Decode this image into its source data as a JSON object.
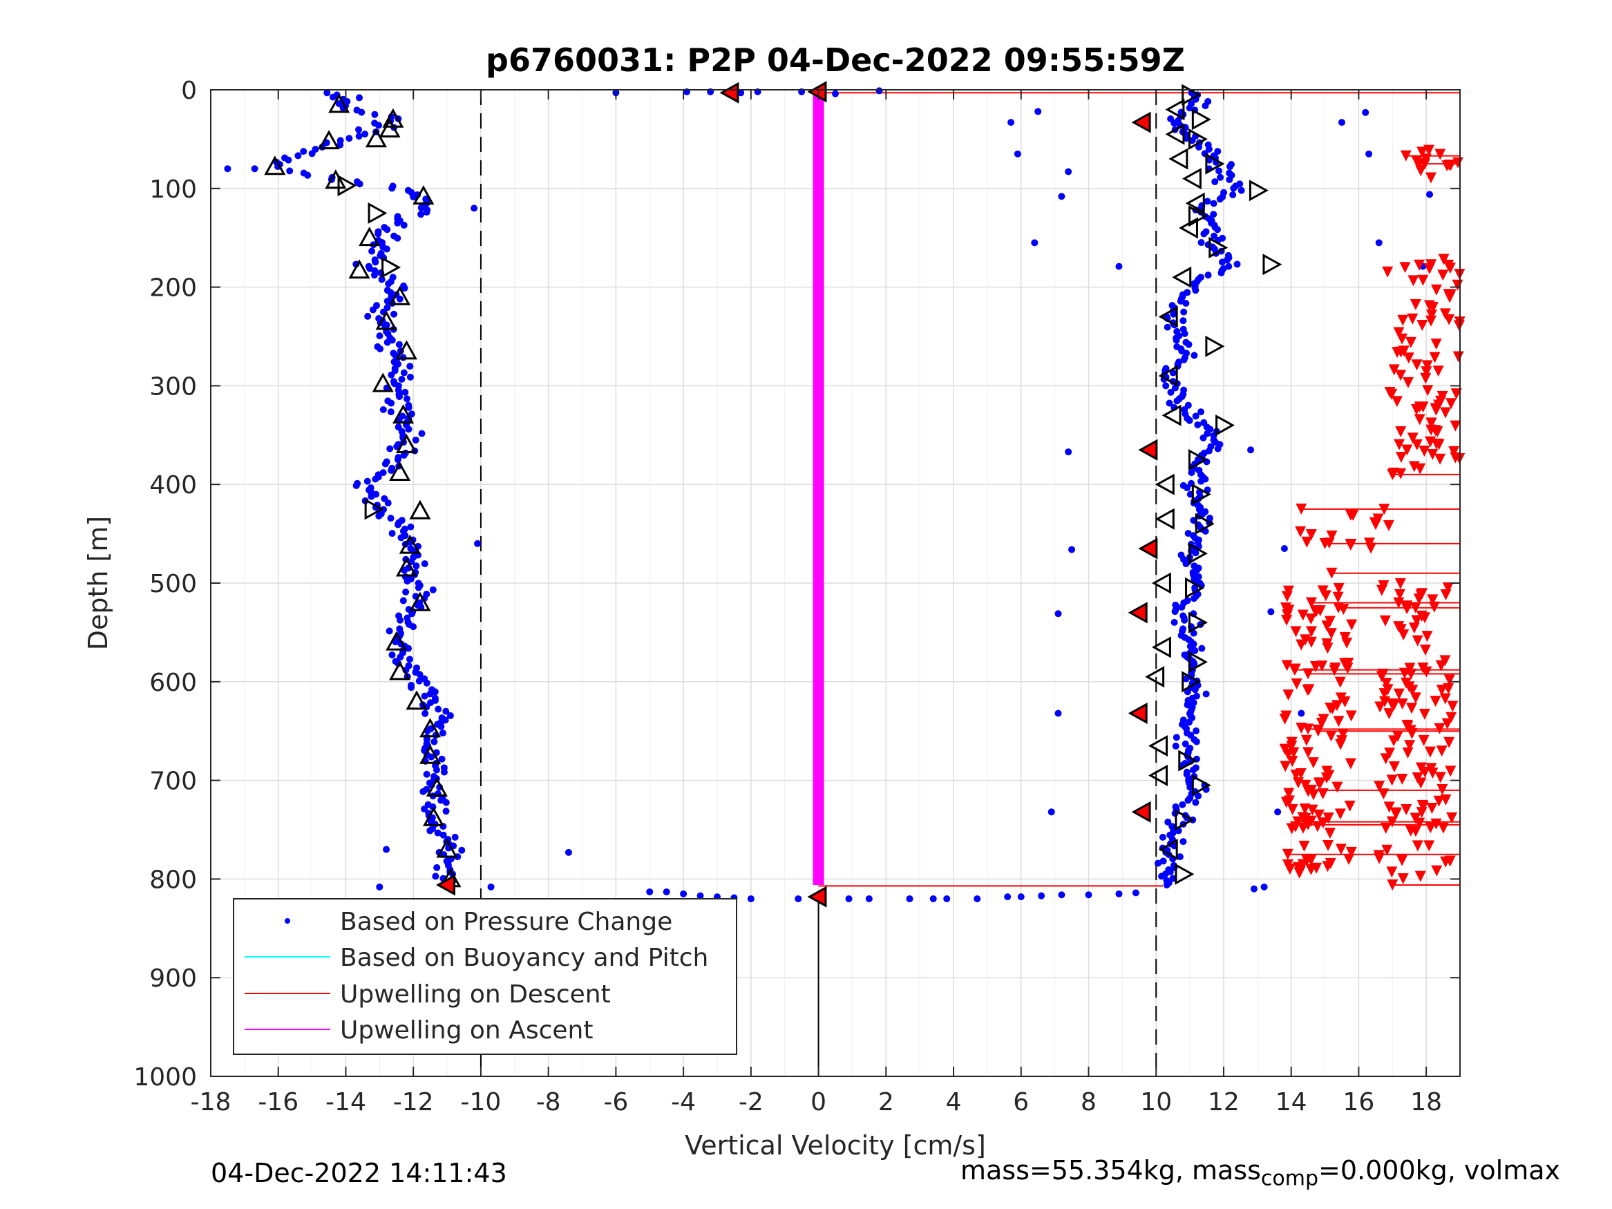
{
  "chart_data": {
    "type": "scatter",
    "title": "p6760031: P2P 04-Dec-2022 09:55:59Z",
    "xlabel": "Vertical Velocity [cm/s]",
    "ylabel": "Depth [m]",
    "xlim": [
      -18,
      19
    ],
    "ylim": [
      0,
      1000
    ],
    "y_reversed": true,
    "grid": true,
    "xticks": [
      "-18",
      "-16",
      "-14",
      "-12",
      "-10",
      "-8",
      "-6",
      "-4",
      "-2",
      "0",
      "2",
      "4",
      "6",
      "8",
      "10",
      "12",
      "14",
      "16",
      "18"
    ],
    "yticks": [
      "0",
      "100",
      "200",
      "300",
      "400",
      "500",
      "600",
      "700",
      "800",
      "900",
      "1000"
    ],
    "legend_position": "bottom-left",
    "legend": [
      {
        "label": "Based on Pressure Change",
        "color": "#0000ff",
        "marker": "dot"
      },
      {
        "label": "Based on Buoyancy and Pitch",
        "color": "#00ffff",
        "marker": "line"
      },
      {
        "label": "Upwelling on Descent",
        "color": "#ff0000",
        "marker": "line"
      },
      {
        "label": "Upwelling on Ascent",
        "color": "#ff00ff",
        "marker": "line"
      }
    ],
    "reference_lines": [
      {
        "x": -10,
        "style": "dashed"
      },
      {
        "x": 10,
        "style": "dashed"
      },
      {
        "x": 0,
        "style": "solid",
        "ymin": 820,
        "ymax": 1000
      }
    ],
    "ascent_profile_approx": [
      [
        0,
        -14.5
      ],
      [
        15,
        -14.2
      ],
      [
        30,
        -12.6
      ],
      [
        45,
        -13.4
      ],
      [
        55,
        -14.6
      ],
      [
        70,
        -15.8
      ],
      [
        80,
        -16.2
      ],
      [
        90,
        -14.2
      ],
      [
        100,
        -12.5
      ],
      [
        110,
        -11.8
      ],
      [
        120,
        -11.6
      ],
      [
        135,
        -12.6
      ],
      [
        150,
        -12.8
      ],
      [
        165,
        -13.1
      ],
      [
        180,
        -13.5
      ],
      [
        195,
        -12.4
      ],
      [
        210,
        -12.8
      ],
      [
        230,
        -12.9
      ],
      [
        260,
        -12.7
      ],
      [
        290,
        -12.3
      ],
      [
        320,
        -12.4
      ],
      [
        350,
        -12.2
      ],
      [
        380,
        -12.5
      ],
      [
        400,
        -13.6
      ],
      [
        420,
        -13.0
      ],
      [
        440,
        -12.5
      ],
      [
        460,
        -12.1
      ],
      [
        490,
        -12.0
      ],
      [
        520,
        -11.8
      ],
      [
        550,
        -12.4
      ],
      [
        580,
        -12.3
      ],
      [
        610,
        -11.7
      ],
      [
        640,
        -11.3
      ],
      [
        670,
        -11.5
      ],
      [
        700,
        -11.4
      ],
      [
        730,
        -11.4
      ],
      [
        760,
        -11.1
      ],
      [
        790,
        -10.9
      ],
      [
        805,
        -11.0
      ]
    ],
    "descent_profile_approx": [
      [
        0,
        11.0
      ],
      [
        15,
        11.3
      ],
      [
        30,
        10.5
      ],
      [
        45,
        10.9
      ],
      [
        60,
        11.5
      ],
      [
        80,
        12.0
      ],
      [
        100,
        12.2
      ],
      [
        120,
        11.4
      ],
      [
        140,
        11.6
      ],
      [
        160,
        11.8
      ],
      [
        180,
        12.2
      ],
      [
        195,
        11.2
      ],
      [
        210,
        10.8
      ],
      [
        230,
        10.4
      ],
      [
        260,
        10.9
      ],
      [
        290,
        10.4
      ],
      [
        320,
        10.7
      ],
      [
        350,
        11.8
      ],
      [
        380,
        11.2
      ],
      [
        410,
        11.2
      ],
      [
        440,
        11.3
      ],
      [
        470,
        11.0
      ],
      [
        500,
        11.2
      ],
      [
        530,
        10.8
      ],
      [
        560,
        11.0
      ],
      [
        590,
        11.0
      ],
      [
        620,
        11.1
      ],
      [
        650,
        10.9
      ],
      [
        680,
        10.9
      ],
      [
        710,
        11.2
      ],
      [
        740,
        10.7
      ],
      [
        770,
        10.4
      ],
      [
        800,
        10.4
      ]
    ],
    "surface_row": [
      [
        -6.0,
        3
      ],
      [
        -3.9,
        2
      ],
      [
        -3.2,
        2
      ],
      [
        -2.3,
        3
      ],
      [
        -1.8,
        2
      ],
      [
        -0.5,
        2
      ],
      [
        0.5,
        4
      ],
      [
        1.8,
        1
      ]
    ],
    "bottom_row": [
      [
        -5.0,
        813
      ],
      [
        -4.5,
        813
      ],
      [
        -4.0,
        815
      ],
      [
        -3.5,
        817
      ],
      [
        -3.0,
        818
      ],
      [
        -2.5,
        819
      ],
      [
        -2.0,
        820
      ],
      [
        -0.6,
        820
      ],
      [
        0.9,
        820
      ],
      [
        1.5,
        820
      ],
      [
        2.7,
        820
      ],
      [
        3.4,
        820
      ],
      [
        3.8,
        820
      ],
      [
        4.7,
        820
      ],
      [
        5.6,
        818
      ],
      [
        6.0,
        818
      ],
      [
        6.6,
        817
      ],
      [
        7.2,
        816
      ],
      [
        8.0,
        816
      ],
      [
        8.9,
        815
      ],
      [
        9.4,
        814
      ]
    ],
    "triangles_up_approx": [
      [
        -14.2,
        15
      ],
      [
        -12.6,
        30
      ],
      [
        -12.7,
        40
      ],
      [
        -14.5,
        52
      ],
      [
        -13.1,
        50
      ],
      [
        -16.1,
        78
      ],
      [
        -14.3,
        92
      ],
      [
        -11.7,
        108
      ],
      [
        -13.3,
        150
      ],
      [
        -13.6,
        183
      ],
      [
        -12.4,
        210
      ],
      [
        -12.8,
        235
      ],
      [
        -12.2,
        265
      ],
      [
        -12.9,
        298
      ],
      [
        -12.3,
        330
      ],
      [
        -12.2,
        360
      ],
      [
        -12.4,
        388
      ],
      [
        -11.8,
        427
      ],
      [
        -12.1,
        462
      ],
      [
        -12.2,
        485
      ],
      [
        -11.8,
        520
      ],
      [
        -12.5,
        560
      ],
      [
        -12.4,
        590
      ],
      [
        -11.9,
        620
      ],
      [
        -11.5,
        648
      ],
      [
        -11.5,
        675
      ],
      [
        -11.3,
        708
      ],
      [
        -11.4,
        738
      ],
      [
        -11.0,
        770
      ],
      [
        -10.9,
        800
      ]
    ],
    "triangles_right_approx": [
      [
        -14.0,
        97
      ],
      [
        -13.1,
        125
      ],
      [
        -12.7,
        180
      ],
      [
        -13.2,
        425
      ],
      [
        11.0,
        5
      ],
      [
        11.3,
        30
      ],
      [
        11.2,
        50
      ],
      [
        11.7,
        75
      ],
      [
        13.0,
        102
      ],
      [
        11.2,
        128
      ],
      [
        11.8,
        160
      ],
      [
        13.4,
        177
      ],
      [
        11.7,
        260
      ],
      [
        12.0,
        340
      ],
      [
        11.2,
        375
      ],
      [
        11.3,
        410
      ],
      [
        11.4,
        440
      ],
      [
        11.2,
        470
      ],
      [
        11.1,
        505
      ],
      [
        11.2,
        540
      ],
      [
        11.2,
        580
      ],
      [
        11.0,
        600
      ],
      [
        10.9,
        680
      ],
      [
        11.3,
        705
      ],
      [
        10.8,
        740
      ],
      [
        10.8,
        795
      ]
    ],
    "triangles_left_approx": [
      [
        10.6,
        20
      ],
      [
        10.6,
        45
      ],
      [
        10.7,
        70
      ],
      [
        11.1,
        90
      ],
      [
        11.2,
        115
      ],
      [
        11.0,
        140
      ],
      [
        10.8,
        190
      ],
      [
        10.4,
        230
      ],
      [
        10.4,
        290
      ],
      [
        10.5,
        330
      ],
      [
        10.3,
        400
      ],
      [
        10.3,
        435
      ],
      [
        10.2,
        500
      ],
      [
        10.2,
        565
      ],
      [
        10.0,
        595
      ],
      [
        10.1,
        665
      ],
      [
        10.1,
        695
      ],
      [
        10.4,
        770
      ]
    ],
    "red_markers_approx": [
      [
        -2.6,
        3
      ],
      [
        0,
        2
      ],
      [
        9.6,
        33
      ],
      [
        9.8,
        365
      ],
      [
        9.8,
        465
      ],
      [
        9.5,
        530
      ],
      [
        9.5,
        632
      ],
      [
        9.6,
        732
      ],
      [
        -11.0,
        806
      ],
      [
        0,
        818
      ]
    ],
    "red_triangle_clusters_approx": [
      {
        "y_range": [
          60,
          90
        ],
        "x_range": [
          17.6,
          19.0
        ]
      },
      {
        "y_range": [
          170,
          390
        ],
        "x_range": [
          16.8,
          19.0
        ]
      },
      {
        "y_range": [
          425,
          465
        ],
        "x_range": [
          14.2,
          17.0
        ]
      },
      {
        "y_range": [
          500,
          800
        ],
        "x_range": [
          16.6,
          18.8
        ]
      },
      {
        "y_range": [
          500,
          800
        ],
        "x_range": [
          13.8,
          15.8
        ]
      }
    ],
    "footer_timestamp": "04-Dec-2022 14:11:43",
    "footer_mass": {
      "main": "mass=55.354kg, mass",
      "sub": "comp",
      "rest": "=0.000kg, volmax"
    }
  }
}
